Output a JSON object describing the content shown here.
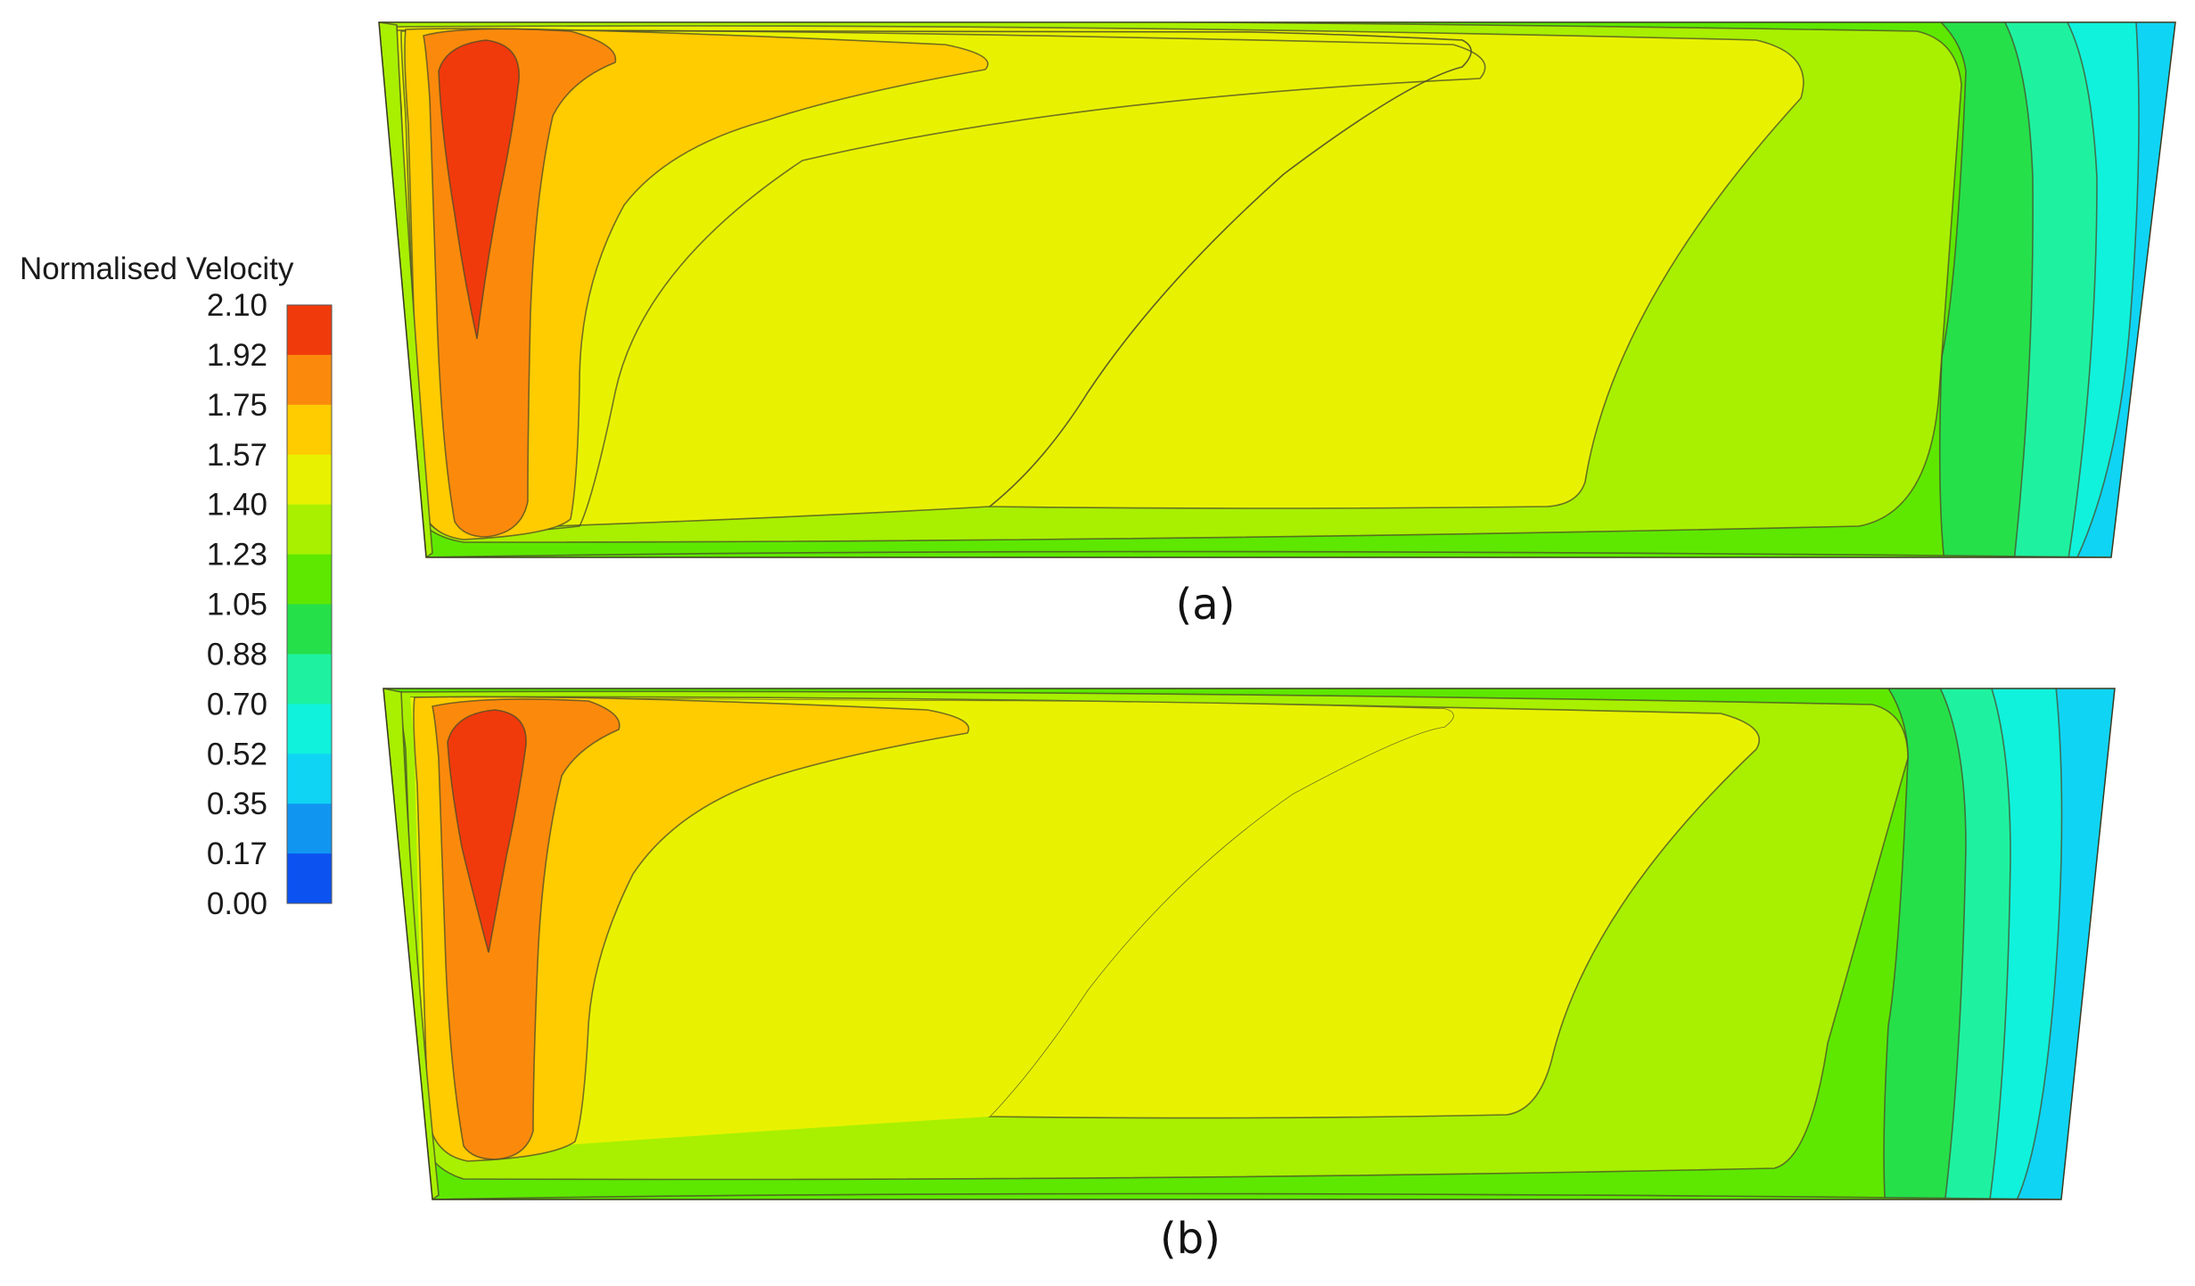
{
  "legend": {
    "title": "Normalised Velocity",
    "ticks": [
      "2.10",
      "1.92",
      "1.75",
      "1.57",
      "1.40",
      "1.23",
      "1.05",
      "0.88",
      "0.70",
      "0.52",
      "0.35",
      "0.17",
      "0.00"
    ],
    "bands": [
      "#f03a0c",
      "#fb8a0c",
      "#ffcc00",
      "#e8f200",
      "#a8f000",
      "#5ee800",
      "#26e04a",
      "#1ef2a0",
      "#10f2dc",
      "#10d4f4",
      "#1096f0",
      "#0c52f0"
    ]
  },
  "panels": [
    {
      "label": "(a)"
    },
    {
      "label": "(b)"
    }
  ]
}
